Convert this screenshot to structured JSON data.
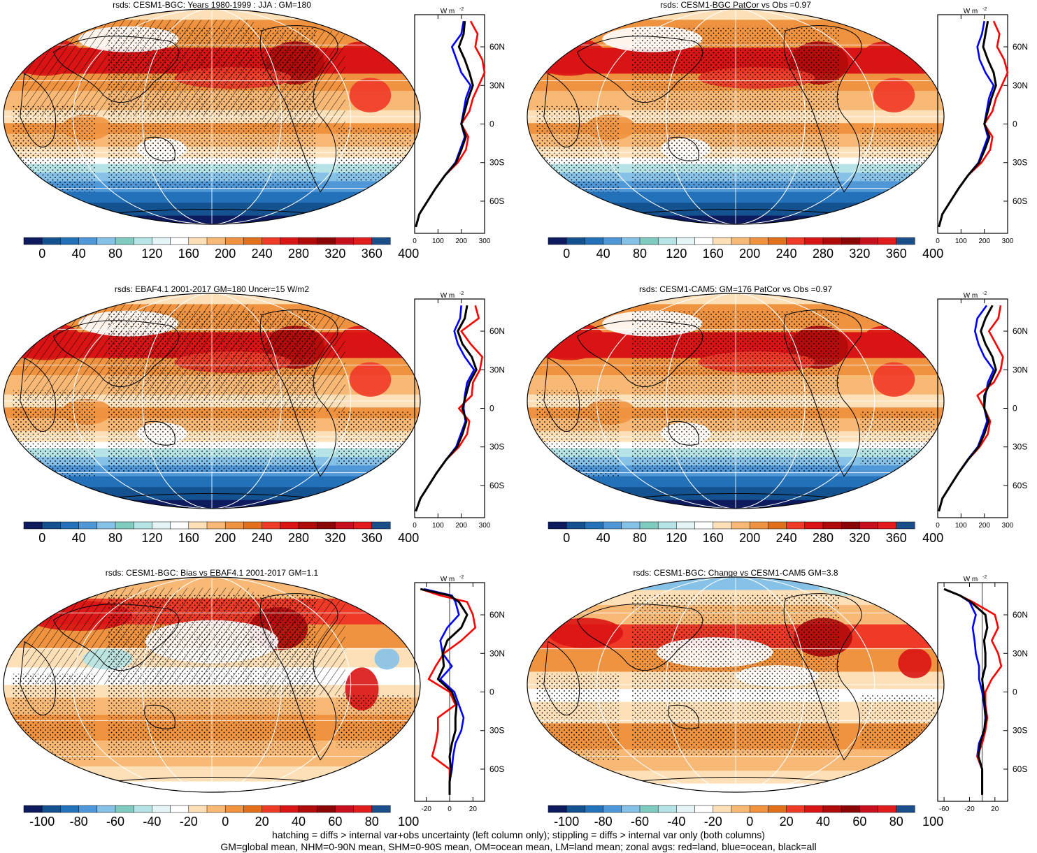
{
  "figure": {
    "footer_line1": "hatching = diffs > internal var+obs uncertainty (left column only); stippling = diffs > internal var only (both columns)",
    "footer_line2": "GM=global mean, NHM=0-90N mean, SHM=0-90S mean, OM=ocean mean, LM=land mean; zonal avgs: red=land, blue=ocean, black=all"
  },
  "colors": {
    "land": "#ff0000",
    "ocean": "#0000ff",
    "all": "#000000",
    "scale_abs": [
      "#0d1a5e",
      "#14518f",
      "#2371b8",
      "#4f97d6",
      "#86c1e8",
      "#7fcbc0",
      "#b6e4e6",
      "#e4f4f7",
      "#ffffff",
      "#fde0b8",
      "#f8b976",
      "#ef9340",
      "#e0701c",
      "#f03a28",
      "#d91414",
      "#b10a0a",
      "#8a0606",
      "#c80f1e",
      "#e01c1c",
      "#1b4f8a"
    ],
    "scale_diff": [
      "#0d1a5e",
      "#14518f",
      "#2371b8",
      "#4f97d6",
      "#86c1e8",
      "#7fcbc0",
      "#b6e4e6",
      "#e4f4f7",
      "#ffffff",
      "#fde0b8",
      "#f8b976",
      "#ef9340",
      "#e0701c",
      "#f03a28",
      "#d91414",
      "#b10a0a",
      "#8a0606",
      "#c80f1e",
      "#e01c1c",
      "#1b4f8a"
    ]
  },
  "chart_data": [
    {
      "type": "heatmap",
      "title": "rsds: CESM1-BGC: Years 1980-1999 : JJA : GM=180",
      "colorbar_ticks": [
        "0",
        "40",
        "80",
        "120",
        "160",
        "200",
        "240",
        "280",
        "320",
        "360",
        "400"
      ],
      "pattern": "abs",
      "hatching": true,
      "zonal": {
        "type": "line",
        "unit_label": "W m",
        "unit_sup": "-2",
        "xlim": [
          0,
          300
        ],
        "xticks": [
          "0",
          "100",
          "200",
          "300"
        ],
        "yticks": [
          "60N",
          "30N",
          "0",
          "30S",
          "60S"
        ],
        "ytick_values": [
          60,
          30,
          0,
          -30,
          -60
        ],
        "ylim": [
          -85,
          85
        ],
        "lat": [
          80,
          70,
          60,
          50,
          40,
          30,
          20,
          10,
          0,
          -10,
          -20,
          -30,
          -40,
          -50,
          -60,
          -70,
          -80
        ],
        "series": [
          {
            "color": "land",
            "values": [
              240,
              270,
              260,
              290,
              300,
              275,
              250,
              235,
              200,
              230,
              220,
              185,
              130,
              90,
              55,
              20,
              5
            ]
          },
          {
            "color": "ocean",
            "values": [
              210,
              200,
              160,
              180,
              200,
              240,
              220,
              210,
              200,
              215,
              195,
              175,
              130,
              90,
              55,
              20,
              5
            ]
          },
          {
            "color": "all",
            "values": [
              215,
              210,
              190,
              215,
              235,
              250,
              230,
              215,
              200,
              220,
              200,
              178,
              130,
              90,
              55,
              20,
              5
            ]
          }
        ]
      }
    },
    {
      "type": "heatmap",
      "title": "rsds: CESM1-BGC PatCor vs Obs =0.97",
      "colorbar_ticks": [
        "0",
        "40",
        "80",
        "120",
        "160",
        "200",
        "240",
        "280",
        "320",
        "360",
        "400"
      ],
      "pattern": "abs",
      "hatching": false,
      "zonal": {
        "type": "line",
        "unit_label": "W m",
        "unit_sup": "-2",
        "xlim": [
          0,
          300
        ],
        "xticks": [
          "0",
          "100",
          "200",
          "300"
        ],
        "yticks": [
          "60N",
          "30N",
          "0",
          "30S",
          "60S"
        ],
        "ytick_values": [
          60,
          30,
          0,
          -30,
          -60
        ],
        "ylim": [
          -85,
          85
        ],
        "lat": [
          80,
          70,
          60,
          50,
          40,
          30,
          20,
          10,
          0,
          -10,
          -20,
          -30,
          -40,
          -50,
          -60,
          -70,
          -80
        ],
        "series": [
          {
            "color": "land",
            "values": [
              240,
              265,
              255,
              285,
              300,
              275,
              250,
              235,
              200,
              235,
              225,
              188,
              130,
              90,
              55,
              20,
              5
            ]
          },
          {
            "color": "ocean",
            "values": [
              200,
              190,
              170,
              180,
              205,
              240,
              220,
              210,
              200,
              215,
              195,
              175,
              130,
              90,
              55,
              20,
              5
            ]
          },
          {
            "color": "all",
            "values": [
              215,
              205,
              195,
              215,
              240,
              250,
              230,
              215,
              200,
              222,
              202,
              178,
              130,
              90,
              55,
              20,
              5
            ]
          }
        ]
      }
    },
    {
      "type": "heatmap",
      "title": "rsds: EBAF4.1 2001-2017 GM=180 Uncer=15 W/m2",
      "colorbar_ticks": [
        "0",
        "40",
        "80",
        "120",
        "160",
        "200",
        "240",
        "280",
        "320",
        "360",
        "400"
      ],
      "pattern": "abs",
      "hatching": true,
      "zonal": {
        "type": "line",
        "unit_label": "W m",
        "unit_sup": "-2",
        "xlim": [
          0,
          300
        ],
        "xticks": [
          "0",
          "100",
          "200",
          "300"
        ],
        "yticks": [
          "60N",
          "30N",
          "0",
          "30S",
          "60S"
        ],
        "ytick_values": [
          60,
          30,
          0,
          -30,
          -60
        ],
        "ylim": [
          -85,
          85
        ],
        "lat": [
          80,
          70,
          60,
          50,
          40,
          30,
          20,
          10,
          0,
          -10,
          -20,
          -30,
          -40,
          -50,
          -60,
          -70,
          -80
        ],
        "series": [
          {
            "color": "land",
            "values": [
              260,
              275,
              200,
              240,
              290,
              280,
              250,
              245,
              190,
              235,
              225,
              190,
              135,
              95,
              60,
              25,
              5
            ]
          },
          {
            "color": "ocean",
            "values": [
              200,
              195,
              170,
              185,
              215,
              255,
              225,
              215,
              210,
              218,
              198,
              178,
              135,
              95,
              60,
              25,
              5
            ]
          },
          {
            "color": "all",
            "values": [
              225,
              215,
              185,
              205,
              245,
              265,
              235,
              220,
              205,
              222,
              205,
              182,
              135,
              95,
              60,
              25,
              5
            ]
          }
        ]
      }
    },
    {
      "type": "heatmap",
      "title": "rsds: CESM1-CAM5: GM=176 PatCor vs Obs =0.97",
      "colorbar_ticks": [
        "0",
        "40",
        "80",
        "120",
        "160",
        "200",
        "240",
        "280",
        "320",
        "360",
        "400"
      ],
      "pattern": "abs",
      "hatching": false,
      "zonal": {
        "type": "line",
        "unit_label": "W m",
        "unit_sup": "-2",
        "xlim": [
          0,
          300
        ],
        "xticks": [
          "0",
          "100",
          "200",
          "300"
        ],
        "yticks": [
          "60N",
          "30N",
          "0",
          "30S",
          "60S"
        ],
        "ytick_values": [
          60,
          30,
          0,
          -30,
          -60
        ],
        "ylim": [
          -85,
          85
        ],
        "lat": [
          80,
          70,
          60,
          50,
          40,
          30,
          20,
          10,
          0,
          -10,
          -20,
          -30,
          -40,
          -50,
          -60,
          -70,
          -80
        ],
        "series": [
          {
            "color": "land",
            "values": [
              270,
              260,
              220,
              250,
              280,
              270,
              240,
              170,
              200,
              225,
              215,
              180,
              130,
              90,
              55,
              20,
              5
            ]
          },
          {
            "color": "ocean",
            "values": [
              210,
              170,
              160,
              175,
              200,
              240,
              215,
              205,
              200,
              212,
              193,
              172,
              128,
              90,
              55,
              20,
              5
            ]
          },
          {
            "color": "all",
            "values": [
              235,
              205,
              185,
              205,
              235,
              250,
              225,
              200,
              200,
              218,
              200,
              175,
              130,
              90,
              55,
              20,
              5
            ]
          }
        ]
      }
    },
    {
      "type": "heatmap",
      "title": "rsds: CESM1-BGC: Bias vs EBAF4.1 2001-2017 GM=1.1",
      "colorbar_ticks": [
        "-100",
        "-80",
        "-60",
        "-40",
        "-20",
        "0",
        "20",
        "40",
        "60",
        "80",
        "100"
      ],
      "pattern": "bias",
      "hatching": true,
      "zonal": {
        "type": "line",
        "unit_label": "W m",
        "unit_sup": "-2",
        "xlim": [
          -30,
          30
        ],
        "xticks": [
          "-20",
          "0",
          "20"
        ],
        "xtick_values": [
          -20,
          0,
          20
        ],
        "zero_line": true,
        "yticks": [
          "60N",
          "30N",
          "0",
          "30S",
          "60S"
        ],
        "ytick_values": [
          60,
          30,
          0,
          -30,
          -60
        ],
        "ylim": [
          -85,
          85
        ],
        "lat": [
          80,
          75,
          70,
          60,
          50,
          40,
          30,
          20,
          10,
          0,
          -10,
          -20,
          -30,
          -40,
          -50,
          -60,
          -70,
          -80
        ],
        "series": [
          {
            "color": "land",
            "values": [
              -25,
              -8,
              15,
              20,
              22,
              10,
              -5,
              -12,
              -18,
              0,
              5,
              -10,
              -10,
              -12,
              -15,
              0,
              0,
              0
            ]
          },
          {
            "color": "ocean",
            "values": [
              -22,
              2,
              5,
              8,
              -2,
              -8,
              -6,
              2,
              -8,
              4,
              8,
              12,
              10,
              5,
              3,
              2,
              0,
              0
            ]
          },
          {
            "color": "all",
            "values": [
              -25,
              0,
              8,
              15,
              10,
              -2,
              -6,
              -5,
              -10,
              2,
              6,
              5,
              5,
              2,
              0,
              1,
              0,
              0
            ]
          }
        ]
      }
    },
    {
      "type": "heatmap",
      "title": "rsds: CESM1-BGC: Change vs CESM1-CAM5 GM=3.8",
      "colorbar_ticks": [
        "-100",
        "-80",
        "-60",
        "-40",
        "-20",
        "0",
        "20",
        "40",
        "60",
        "80",
        "100"
      ],
      "pattern": "change",
      "hatching": false,
      "zonal": {
        "type": "line",
        "unit_label": "W m",
        "unit_sup": "-2",
        "xlim": [
          -70,
          40
        ],
        "xticks": [
          "-60",
          "-20",
          "20"
        ],
        "xtick_values": [
          -60,
          -20,
          20
        ],
        "zero_line": true,
        "yticks": [
          "60N",
          "30N",
          "0",
          "30S",
          "60S"
        ],
        "ytick_values": [
          60,
          30,
          0,
          -30,
          -60
        ],
        "ylim": [
          -85,
          85
        ],
        "lat": [
          80,
          75,
          70,
          60,
          50,
          40,
          30,
          20,
          10,
          0,
          -10,
          -20,
          -30,
          -40,
          -50,
          -60,
          -70,
          -80
        ],
        "series": [
          {
            "color": "land",
            "values": [
              -60,
              -35,
              -15,
              20,
              25,
              15,
              25,
              30,
              15,
              5,
              5,
              8,
              5,
              0,
              -8,
              0,
              0,
              0
            ]
          },
          {
            "color": "ocean",
            "values": [
              -60,
              -35,
              -20,
              -10,
              -15,
              -12,
              -10,
              -5,
              -5,
              0,
              3,
              5,
              3,
              -5,
              -8,
              0,
              0,
              0
            ]
          },
          {
            "color": "all",
            "values": [
              -60,
              -35,
              -18,
              5,
              8,
              3,
              5,
              5,
              0,
              2,
              4,
              6,
              3,
              -3,
              -6,
              0,
              0,
              0
            ]
          }
        ]
      }
    }
  ]
}
